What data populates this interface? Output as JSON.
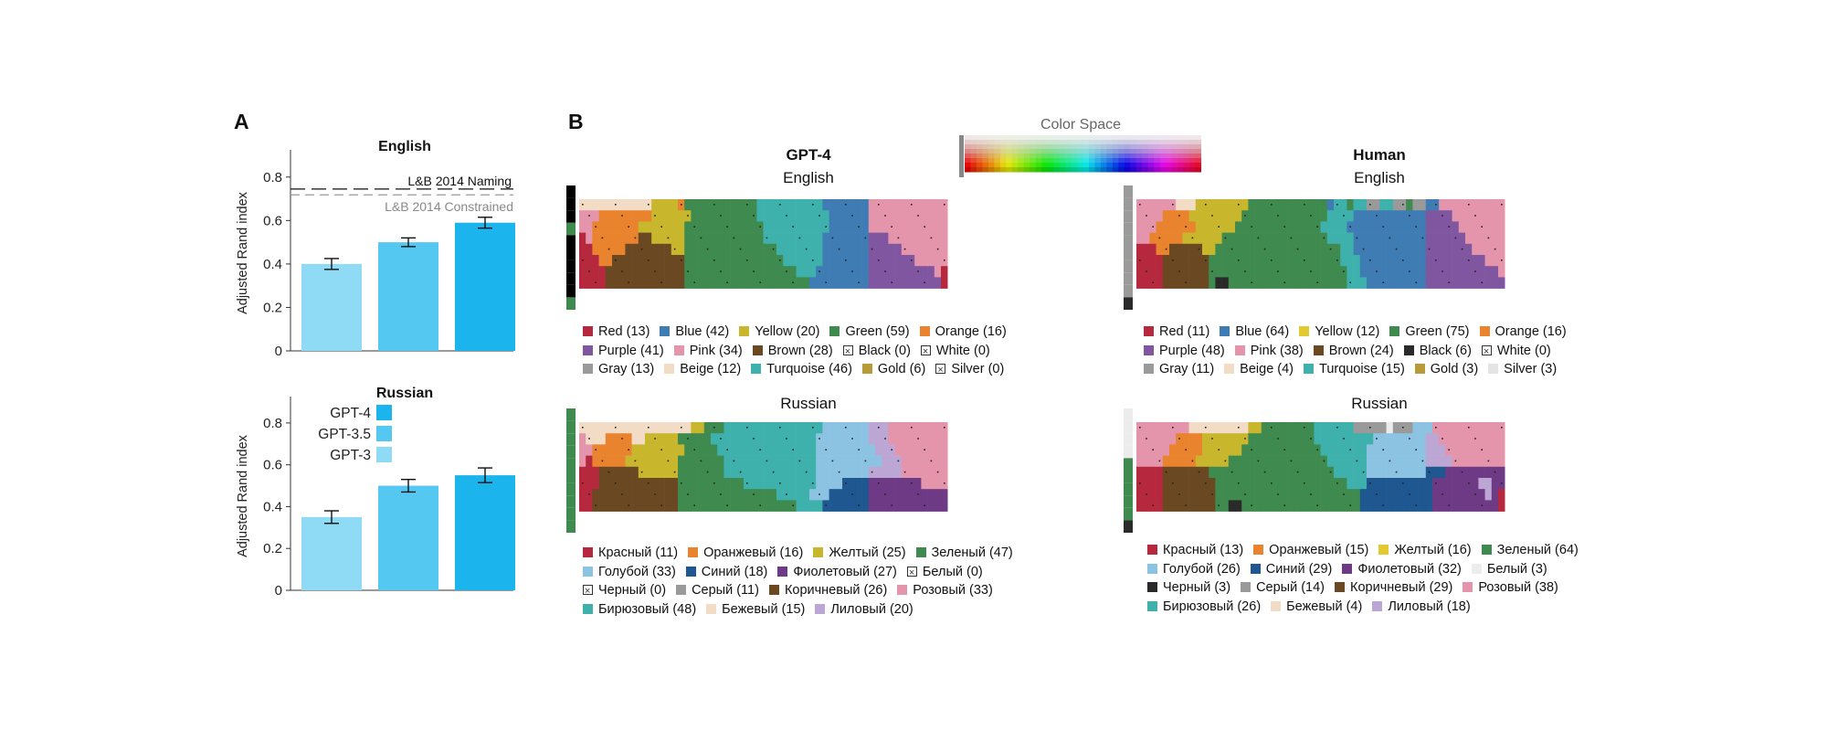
{
  "labels": {
    "a": "A",
    "b": "B",
    "color_space": "Color Space"
  },
  "chart_data": [
    {
      "type": "bar",
      "id": "english-ari",
      "title": "English",
      "ylabel": "Adjusted Rand index",
      "ylim": [
        0,
        0.9
      ],
      "yticks": [
        "0",
        "0.2",
        "0.4",
        "0.6",
        "0.8"
      ],
      "categories": [
        "GPT-3",
        "GPT-3.5",
        "GPT-4"
      ],
      "values": [
        0.4,
        0.5,
        0.59
      ],
      "errors": [
        0.025,
        0.02,
        0.025
      ],
      "colors": [
        "#8fdbf5",
        "#55c8f2",
        "#1cb4ec"
      ],
      "reference_lines": [
        {
          "label": "L&B 2014 Naming",
          "value": 0.745,
          "style": "black-dash"
        },
        {
          "label": "L&B 2014 Constrained",
          "value": 0.735,
          "style": "gray-dash"
        }
      ]
    },
    {
      "type": "bar",
      "id": "russian-ari",
      "title": "Russian",
      "ylabel": "Adjusted Rand index",
      "ylim": [
        0,
        0.9
      ],
      "yticks": [
        "0",
        "0.2",
        "0.4",
        "0.6",
        "0.8"
      ],
      "categories": [
        "GPT-3",
        "GPT-3.5",
        "GPT-4"
      ],
      "values": [
        0.35,
        0.5,
        0.55
      ],
      "errors": [
        0.03,
        0.03,
        0.035
      ],
      "colors": [
        "#8fdbf5",
        "#55c8f2",
        "#1cb4ec"
      ],
      "legend": [
        "GPT-4",
        "GPT-3.5",
        "GPT-3"
      ],
      "legend_colors": [
        "#1cb4ec",
        "#55c8f2",
        "#8fdbf5"
      ]
    }
  ],
  "maps": {
    "gpt4_english": {
      "model": "GPT-4",
      "language": "English"
    },
    "human_english": {
      "model": "Human",
      "language": "English"
    },
    "gpt4_russian": {
      "language": "Russian"
    },
    "human_russian": {
      "language": "Russian"
    }
  },
  "color_terms": {
    "gpt4_english": [
      [
        {
          "n": "Red (13)",
          "c": "#b6283d"
        },
        {
          "n": "Blue (42)",
          "c": "#3f7cb4"
        },
        {
          "n": "Yellow (20)",
          "c": "#c8b62c"
        },
        {
          "n": "Green (59)",
          "c": "#3f8a4e"
        },
        {
          "n": "Orange (16)",
          "c": "#e9832d"
        }
      ],
      [
        {
          "n": "Purple (41)",
          "c": "#8056a0"
        },
        {
          "n": "Pink (34)",
          "c": "#e595ab"
        },
        {
          "n": "Brown (28)",
          "c": "#6a4822"
        },
        {
          "n": "Black (0)",
          "c": "x"
        },
        {
          "n": "White (0)",
          "c": "x"
        }
      ],
      [
        {
          "n": "Gray (13)",
          "c": "#9a9a9a"
        },
        {
          "n": "Beige (12)",
          "c": "#f3dcc6"
        },
        {
          "n": "Turquoise (46)",
          "c": "#3eb1ad"
        },
        {
          "n": "Gold (6)",
          "c": "#b99a38"
        },
        {
          "n": "Silver (0)",
          "c": "x"
        }
      ]
    ],
    "human_english": [
      [
        {
          "n": "Red (11)",
          "c": "#b6283d"
        },
        {
          "n": "Blue (64)",
          "c": "#3f7cb4"
        },
        {
          "n": "Yellow (12)",
          "c": "#e2c930"
        },
        {
          "n": "Green (75)",
          "c": "#3f8a4e"
        },
        {
          "n": "Orange (16)",
          "c": "#e9832d"
        }
      ],
      [
        {
          "n": "Purple (48)",
          "c": "#8056a0"
        },
        {
          "n": "Pink (38)",
          "c": "#e595ab"
        },
        {
          "n": "Brown (24)",
          "c": "#6a4822"
        },
        {
          "n": "Black (6)",
          "c": "#2a2a2a"
        },
        {
          "n": "White (0)",
          "c": "x"
        }
      ],
      [
        {
          "n": "Gray (11)",
          "c": "#9a9a9a"
        },
        {
          "n": "Beige (4)",
          "c": "#f3dcc6"
        },
        {
          "n": "Turquoise (15)",
          "c": "#3eb1ad"
        },
        {
          "n": "Gold (3)",
          "c": "#b99a38"
        },
        {
          "n": "Silver (3)",
          "c": "#e4e4e4"
        }
      ]
    ],
    "gpt4_russian": [
      [
        {
          "n": "Красный (11)",
          "c": "#b6283d"
        },
        {
          "n": "Оранжевый (16)",
          "c": "#e9832d"
        },
        {
          "n": "Желтый (25)",
          "c": "#c8b62c"
        },
        {
          "n": "Зеленый (47)",
          "c": "#3f8a4e"
        }
      ],
      [
        {
          "n": "Голубой (33)",
          "c": "#8cc3e3"
        },
        {
          "n": "Синий (18)",
          "c": "#1f5790"
        },
        {
          "n": "Фиолетовый (27)",
          "c": "#6e3a86"
        },
        {
          "n": "Белый (0)",
          "c": "x"
        }
      ],
      [
        {
          "n": "Черный (0)",
          "c": "x"
        },
        {
          "n": "Серый (11)",
          "c": "#9a9a9a"
        },
        {
          "n": "Коричневый (26)",
          "c": "#6a4822"
        },
        {
          "n": "Розовый (33)",
          "c": "#e595ab"
        }
      ],
      [
        {
          "n": "Бирюзовый (48)",
          "c": "#3eb1ad"
        },
        {
          "n": "Бежевый (15)",
          "c": "#f3dcc6"
        },
        {
          "n": "Лиловый (20)",
          "c": "#bca6d4"
        }
      ]
    ],
    "human_russian": [
      [
        {
          "n": "Красный (13)",
          "c": "#b6283d"
        },
        {
          "n": "Оранжевый (15)",
          "c": "#e9832d"
        },
        {
          "n": "Желтый (16)",
          "c": "#e2c930"
        },
        {
          "n": "Зеленый (64)",
          "c": "#3f8a4e"
        }
      ],
      [
        {
          "n": "Голубой (26)",
          "c": "#8cc3e3"
        },
        {
          "n": "Синий (29)",
          "c": "#1f5790"
        },
        {
          "n": "Фиолетовый (32)",
          "c": "#6e3a86"
        },
        {
          "n": "Белый (3)",
          "c": "#ececec"
        }
      ],
      [
        {
          "n": "Черный (3)",
          "c": "#2a2a2a"
        },
        {
          "n": "Серый (14)",
          "c": "#9a9a9a"
        },
        {
          "n": "Коричневый (29)",
          "c": "#6a4822"
        },
        {
          "n": "Розовый (38)",
          "c": "#e595ab"
        }
      ],
      [
        {
          "n": "Бирюзовый (26)",
          "c": "#3eb1ad"
        },
        {
          "n": "Бежевый (4)",
          "c": "#f3dcc6"
        },
        {
          "n": "Лиловый (18)",
          "c": "#bca6d4"
        }
      ]
    ]
  },
  "grids": {
    "gpt4_english": {
      "achromatic": "...G.....G",
      "rows": [
        "EEEEEEEEEEEYYYYOGGGGGGGGGGGTTTTTTTTTTBBBBBBBPPPPPPPPPPPP",
        "PPPOOOOOOOOYYYYYYGGGGGGGGGGTTTTTTTTTTTBBBBBBPPPPPPPPPPPP",
        "PPOOOOOOOYYYYYYYGGGGGGGGGGGGTTTTTTTTTTBBBBBBPPPPPPPPPPPP",
        "RPOOOOOOODDYYYYYGGGGGGGGGGGGTTTTTTTTTBBBBBBBUUUPPPPPPPPP",
        "RROOOOODDDDDDDYYGGGGGGGGGGGGGGTTTTTTTBBBBBBBUUUUUPPPPPPP",
        "RRROODDDDDDDDDDDGGGGGGGGGGGGGGGTTTTTTBBBBBBBUUUUUUUPPPPP",
        "RRRRDDDDDDDDDDDDGGGGGGGGGGGGGGGGGTTTBBBBBBBBUUUUUUUUUUPR",
        "RRRRDDDDDDDDDDDDGGGGGGGGGGGGGGGGGGGBBBBBBBBBUUUUUUUUUUUR"
      ]
    },
    "human_english": {
      "achromatic": "SSSSSSSSSK",
      "rows": [
        "PPPPPPEEEYYYYYYYYGGGGGGGGGGGGBTTGTTSSTTSSGSSBBPPPPPPPPPP",
        "PPPPOOOOYYYYYYYYGGGGGGGGGGGGGTTTTBBBBBBBBBBBUUUUPPPPPPPP",
        "PPPOOOOOOYYYYYYGGGGGGGGGGGGGTTTTBBBBBBBBBBBBUUUUUPPPPPPP",
        "PPOOOOOYYYYYYGGGGGGGGGGGGGGGGTTTTBBBBBBBBBBBUUUUUUPPPPPP",
        "RRROODDDDDYYGGGGGGGGGGGGGGGGGGGTTBBBBBBBBBBBUUUUUUUPPPPP",
        "RRRRDDDDDDDGGGGGGGGGGGGGGGGGGGGTTTBBBBBBBBBBUUUUUUUUUPPP",
        "RRRRDDDDDDDGGGGGGGGGGGGGGGGGGGGGTTBBBBBBBBBBUUUUUUUUUUUP",
        "RRRRDDDDDDDGKKGGGGGGGGGGGGGGGGGGTTTBBBBBBBBBUUUUUUUUUUUU"
      ]
    },
    "gpt4_russian": {
      "achromatic": "GGGGGGGGGG",
      "rows": [
        "EEEEEEEEEEEEEEEEEYYGGGTTTTTTTTTTTTTTTLLLLLLLVVVPPPPPPPPP",
        "PEEEOOOOEEYYYYYGGGGGTTTTTTTTTTTTTTTTLLLLLLLLVVVPPPPPPPPP",
        "PPOOOOOOYYYYYYYYGGGGGTTTTTTTTTTTTTTTLLLLLLLLLVVVPPPPPPPP",
        "PROOOOOYYYYYYYYGGGGGGGTTTTTTTTTTTTTTLLLLLLLLLLVVVPPPPPPP",
        "RRRDDDDDDYYYYYYGGGGGGGTTTTTTTTTTTTTTLLLLLLLLVVVVVPPPPPPP",
        "RRRDDDDDDDDDDDDGGGGGGGGGGTTTTTTTTTTTLLLLNNNNFFFFFFFFPPPP",
        "RRDDDDDDDDDDDDDGGGGGGGGGGGGGGGTTTTTLLLNNNNNNFFFFFFFFFFFF",
        "RRDDDDDDDDDDDDDGGGGGGGGGGGGGGGGGGTTTTNNNNNNNFFFFFFFFFFFF"
      ]
    },
    "human_russian": {
      "achromatic": "WWWWGGGGGK",
      "rows": [
        "PPPPPPPPEEEEEEEEEYYGGGGGGGGTTTTTTSSSSSWSSSLLLPPPPPPPPPPP",
        "PPPPPPOOOOYYYYYYYGGGGGGGGGGTTTTTTTTTLLLLLLLLVVPPPPPPPPPP",
        "PPPPPOOOOOYYYYYYGGGGGGGGGGGGTTTTTTTLLLLLLLLLVVVPPPPPPPPP",
        "PPPPOOOOOYYYYYGGGGGGGGGGGGGGGTTTTTTLLLLLLLLLVVVVPPPPPPPP",
        "RRRRDDDDDDDGGGGGGGGGGGGGGGGGGGTTTTTLLLLLLLLLNNNFFFFFFFFF",
        "RRRRDDDDDDDDGGGGGGGGGGGGGGGGGGGGTTTNNNNNNNNNNFFFFFFFVVFF",
        "RRRRDDDDDDDDGGGGGGGGGGGGGGGGGGGGGGNNNNNNNNNNNFFFFFFFFVFR",
        "RRRRDDDDDDDDGGKKGGGGGGGGGGGGGGGGGGNNNNNNNNNNNFFFFFFFFFFR"
      ]
    }
  },
  "grid_colors": {
    "R": "#b6283d",
    "O": "#e9832d",
    "Y": "#c8b62c",
    "G": "#3f8a4e",
    "B": "#3f7cb4",
    "U": "#8056a0",
    "P": "#e595ab",
    "D": "#6a4822",
    "E": "#f3dcc6",
    "T": "#3eb1ad",
    "S": "#9a9a9a",
    "K": "#2a2a2a",
    "W": "#ececec",
    "L": "#8cc3e3",
    "N": "#1f5790",
    "F": "#6e3a86",
    "V": "#bca6d4"
  }
}
